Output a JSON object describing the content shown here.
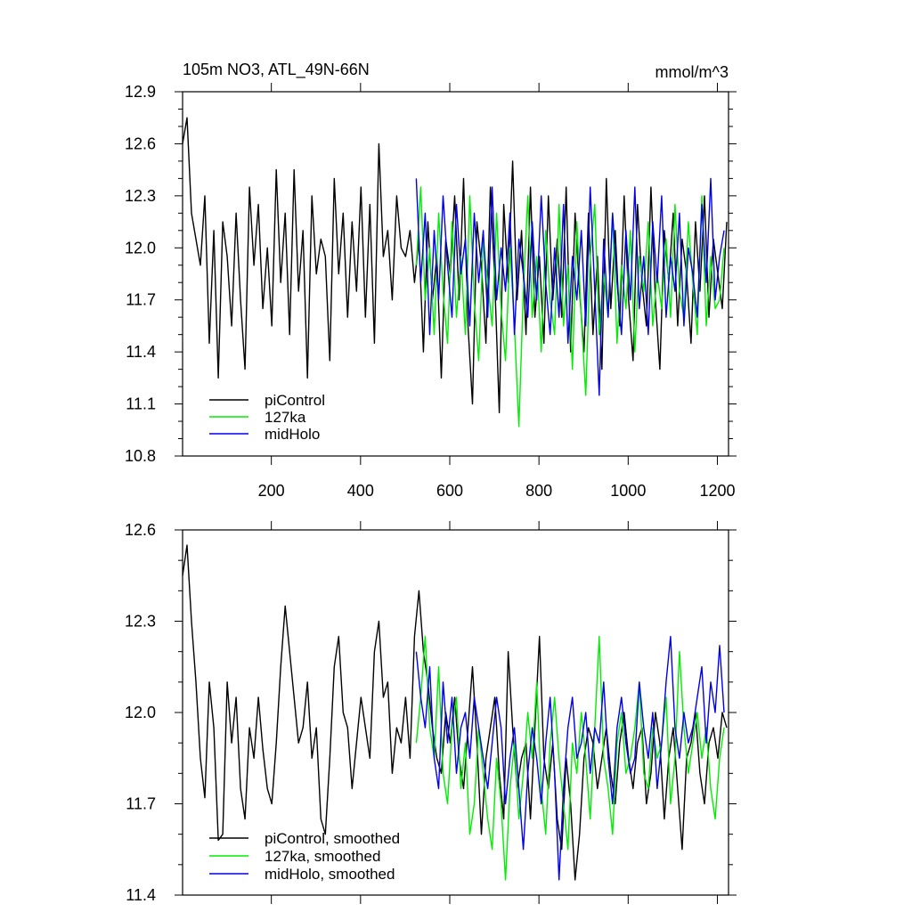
{
  "chart_data": [
    {
      "type": "line",
      "title": "105m NO3, ATL_49N-66N",
      "units": "mmol/m^3",
      "xlim": [
        1,
        1225
      ],
      "ylim": [
        10.8,
        12.9
      ],
      "xticks": [
        200,
        400,
        600,
        800,
        1000,
        1200
      ],
      "xtick_labels": [
        "200",
        "400",
        "600",
        "800",
        "1000",
        "1200"
      ],
      "yticks": [
        10.8,
        11.1,
        11.4,
        11.7,
        12.0,
        12.3,
        12.6,
        12.9
      ],
      "ytick_labels": [
        "10.8",
        "11.1",
        "11.4",
        "11.7",
        "12.0",
        "12.3",
        "12.6",
        "12.9"
      ],
      "legend_position": "bottom-left",
      "series": [
        {
          "name": "piControl",
          "color": "#000000",
          "x_start": 1,
          "x_step": 10,
          "y": [
            12.6,
            12.75,
            12.2,
            12.05,
            11.9,
            12.3,
            11.45,
            12.1,
            11.25,
            12.15,
            11.95,
            11.55,
            12.2,
            11.7,
            11.3,
            12.35,
            11.9,
            12.25,
            11.65,
            12.0,
            11.55,
            12.45,
            11.8,
            12.2,
            11.5,
            12.45,
            11.75,
            12.1,
            11.25,
            12.3,
            11.85,
            12.05,
            11.95,
            11.35,
            12.4,
            11.85,
            12.2,
            11.6,
            12.15,
            11.75,
            12.35,
            11.6,
            12.25,
            11.45,
            12.6,
            11.95,
            12.1,
            11.7,
            12.3,
            12.0,
            11.95,
            12.1,
            11.8,
            12.05,
            11.4,
            12.15,
            11.7,
            11.95,
            11.25,
            12.05,
            11.85,
            12.3,
            11.7,
            12.4,
            11.55,
            11.1,
            12.15,
            11.9,
            11.45,
            12.35,
            11.8,
            11.05,
            12.25,
            11.8,
            12.5,
            11.7,
            12.1,
            11.5,
            12.35,
            11.6,
            11.95,
            11.45,
            12.3,
            11.7,
            12.05,
            11.6,
            12.35,
            11.4,
            12.2,
            11.75,
            11.4,
            12.2,
            11.5,
            11.95,
            11.3,
            12.4,
            11.65,
            12.1,
            11.55,
            12.3,
            11.7,
            11.35,
            12.25,
            11.8,
            11.55,
            12.35,
            11.7,
            11.3,
            12.1,
            11.8,
            12.2,
            11.55,
            12.05,
            11.85,
            11.45,
            12.15,
            11.75,
            12.3,
            11.6,
            12.05,
            11.85,
            11.65,
            12.15
          ]
        },
        {
          "name": "127ka",
          "color": "#00ee00",
          "x_start": 525,
          "x_step": 10,
          "y": [
            11.9,
            12.35,
            11.7,
            12.0,
            11.5,
            12.2,
            11.75,
            11.45,
            12.15,
            11.6,
            11.95,
            11.5,
            12.3,
            11.7,
            11.35,
            12.05,
            11.8,
            11.55,
            12.2,
            11.65,
            11.35,
            12.0,
            11.55,
            10.97,
            11.75,
            12.3,
            11.6,
            11.95,
            11.4,
            12.1,
            11.7,
            11.5,
            12.25,
            11.55,
            11.9,
            11.3,
            12.15,
            11.6,
            11.15,
            11.95,
            12.25,
            11.5,
            11.85,
            11.6,
            12.2,
            11.45,
            11.9,
            11.65,
            12.1,
            11.4,
            11.95,
            11.75,
            12.15,
            11.55,
            11.85,
            11.65,
            12.05,
            11.6,
            12.25,
            11.75,
            11.6,
            12.15,
            11.8,
            11.5,
            12.3,
            11.55,
            11.95,
            11.65,
            11.7,
            12.0
          ]
        },
        {
          "name": "midHolo",
          "color": "#0000ee",
          "x_start": 525,
          "x_step": 10,
          "y": [
            12.4,
            11.8,
            12.2,
            11.5,
            12.1,
            11.7,
            12.3,
            11.9,
            11.6,
            12.25,
            11.85,
            12.05,
            11.55,
            12.2,
            11.8,
            12.1,
            11.6,
            12.35,
            11.7,
            12.0,
            11.75,
            12.2,
            11.5,
            12.05,
            11.85,
            11.6,
            12.15,
            11.7,
            12.3,
            11.8,
            11.5,
            12.0,
            11.6,
            12.25,
            11.45,
            11.95,
            11.7,
            12.1,
            11.55,
            12.35,
            11.75,
            11.15,
            12.05,
            11.6,
            12.2,
            11.8,
            11.5,
            12.1,
            11.7,
            12.35,
            11.65,
            11.95,
            11.5,
            12.15,
            11.8,
            12.3,
            11.6,
            11.95,
            11.75,
            12.2,
            11.55,
            12.0,
            11.85,
            11.6,
            12.25,
            11.8,
            12.4,
            11.7,
            11.95,
            12.1
          ]
        }
      ]
    },
    {
      "type": "line",
      "xlim": [
        1,
        1225
      ],
      "ylim": [
        11.4,
        12.6
      ],
      "xticks": [
        200,
        400,
        600,
        800,
        1000,
        1200
      ],
      "yticks": [
        11.4,
        11.7,
        12.0,
        12.3,
        12.6
      ],
      "ytick_labels": [
        "11.4",
        "11.7",
        "12.0",
        "12.3",
        "12.6"
      ],
      "legend_position": "bottom-left",
      "series": [
        {
          "name": "piControl, smoothed",
          "color": "#000000",
          "x_start": 1,
          "x_step": 10,
          "y": [
            12.45,
            12.55,
            12.3,
            12.1,
            11.85,
            11.72,
            12.1,
            11.95,
            11.58,
            11.6,
            12.1,
            11.9,
            12.05,
            11.75,
            11.65,
            11.95,
            11.85,
            12.05,
            11.88,
            11.75,
            11.7,
            11.9,
            12.15,
            12.35,
            12.2,
            12.05,
            11.9,
            11.95,
            12.1,
            11.85,
            11.95,
            11.65,
            11.6,
            11.85,
            12.15,
            12.25,
            12.0,
            11.95,
            11.75,
            11.9,
            12.05,
            11.95,
            11.85,
            12.2,
            12.3,
            12.05,
            12.1,
            11.8,
            11.95,
            11.9,
            12.05,
            11.85,
            12.25,
            12.4,
            12.2,
            12.1,
            11.95,
            11.85,
            11.8,
            12.0,
            11.9,
            12.05,
            11.85,
            11.75,
            11.95,
            12.15,
            11.9,
            11.6,
            11.85,
            11.95,
            12.05,
            11.8,
            11.65,
            12.2,
            11.95,
            11.75,
            11.85,
            11.9,
            11.65,
            11.95,
            12.25,
            11.85,
            11.75,
            11.9,
            11.65,
            11.55,
            11.85,
            11.7,
            11.45,
            11.6,
            11.85,
            11.95,
            11.9,
            11.75,
            11.85,
            11.95,
            11.8,
            11.7,
            11.9,
            12.0,
            11.85,
            11.75,
            11.9,
            11.95,
            11.7,
            11.8,
            12.0,
            11.9,
            11.65,
            11.85,
            11.95,
            11.75,
            11.55,
            11.85,
            11.9,
            12.0,
            11.8,
            11.7,
            11.9,
            11.95,
            11.85,
            12.0,
            11.95
          ]
        },
        {
          "name": "127ka, smoothed",
          "color": "#00ee00",
          "x_start": 525,
          "x_step": 10,
          "y": [
            11.9,
            12.05,
            12.25,
            11.95,
            11.85,
            12.15,
            11.8,
            11.7,
            11.95,
            12.05,
            11.75,
            11.9,
            11.6,
            11.7,
            11.95,
            11.8,
            11.65,
            11.55,
            11.85,
            11.7,
            11.45,
            11.75,
            11.9,
            11.65,
            11.8,
            12.0,
            11.85,
            12.1,
            11.75,
            11.6,
            11.9,
            12.05,
            11.85,
            11.7,
            11.55,
            11.9,
            11.8,
            12.0,
            11.85,
            11.65,
            11.95,
            12.25,
            11.85,
            11.75,
            11.6,
            11.9,
            12.0,
            11.8,
            11.85,
            11.95,
            12.1,
            11.8,
            11.75,
            11.95,
            11.85,
            11.9,
            12.05,
            11.7,
            11.85,
            12.2,
            11.95,
            11.8,
            11.9,
            12.0,
            11.85,
            11.95,
            11.75,
            11.65,
            11.85,
            11.95
          ]
        },
        {
          "name": "midHolo, smoothed",
          "color": "#0000ee",
          "x_start": 525,
          "x_step": 10,
          "y": [
            12.2,
            12.05,
            11.95,
            12.15,
            11.85,
            11.75,
            12.1,
            11.9,
            12.05,
            11.8,
            11.95,
            12.0,
            11.85,
            12.05,
            11.95,
            11.85,
            11.75,
            11.9,
            12.05,
            11.95,
            11.7,
            11.85,
            11.95,
            11.75,
            11.55,
            11.8,
            11.95,
            11.85,
            11.7,
            11.9,
            12.05,
            11.8,
            11.45,
            11.75,
            11.95,
            12.05,
            11.85,
            11.9,
            12.0,
            11.8,
            11.95,
            11.9,
            12.1,
            11.85,
            11.7,
            11.95,
            12.05,
            11.9,
            11.8,
            11.85,
            12.1,
            11.95,
            11.85,
            12.0,
            11.75,
            11.9,
            12.1,
            12.25,
            11.95,
            11.85,
            12.0,
            11.9,
            11.95,
            12.05,
            12.15,
            11.9,
            12.1,
            12.0,
            12.22,
            12.0
          ]
        }
      ]
    }
  ]
}
